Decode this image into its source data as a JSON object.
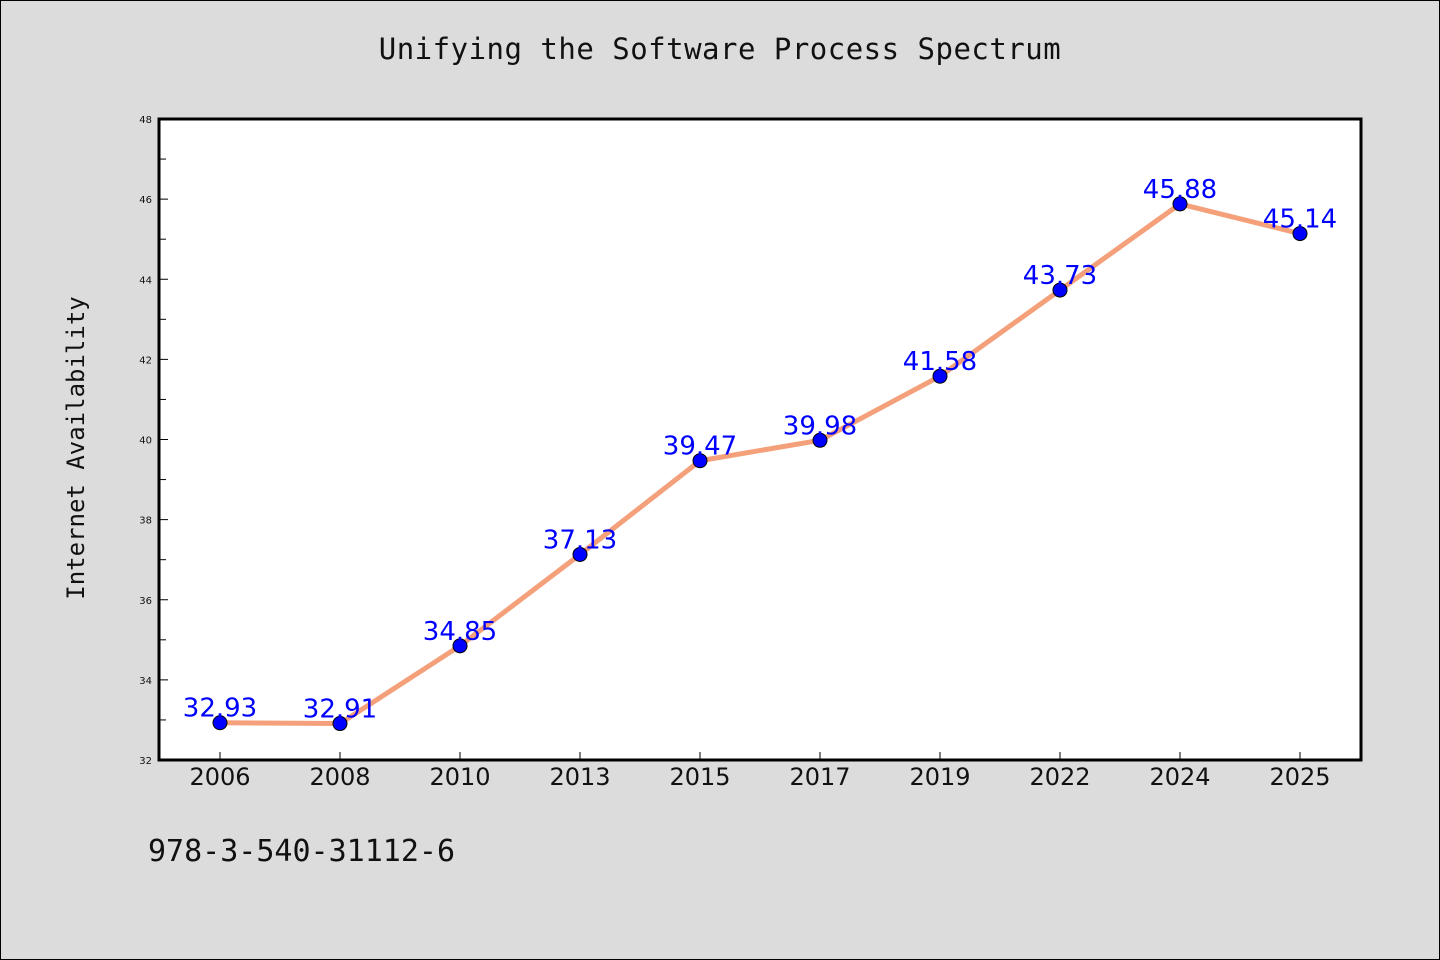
{
  "chart_data": {
    "type": "line",
    "title": "Unifying the Software Process Spectrum",
    "xlabel": "",
    "ylabel": "Internet Availability",
    "categories": [
      "2006",
      "2008",
      "2010",
      "2013",
      "2015",
      "2017",
      "2019",
      "2022",
      "2024",
      "2025"
    ],
    "series": [
      {
        "values": [
          32.93,
          32.91,
          34.85,
          37.13,
          39.47,
          39.98,
          41.58,
          43.73,
          45.88,
          45.14
        ],
        "labels": [
          "32.93",
          "32.91",
          "34.85",
          "37.13",
          "39.47",
          "39.98",
          "41.58",
          "43.73",
          "45.88",
          "45.14"
        ]
      }
    ],
    "ylim": [
      32,
      48
    ],
    "yticks": [
      "32",
      "34",
      "36",
      "38",
      "40",
      "42",
      "44",
      "46",
      "48"
    ],
    "grid": false,
    "line_color": "#f4a07a",
    "marker_color": "#0000ff",
    "label_color": "#0000ff"
  },
  "footer": {
    "text": "978-3-540-31112-6"
  }
}
